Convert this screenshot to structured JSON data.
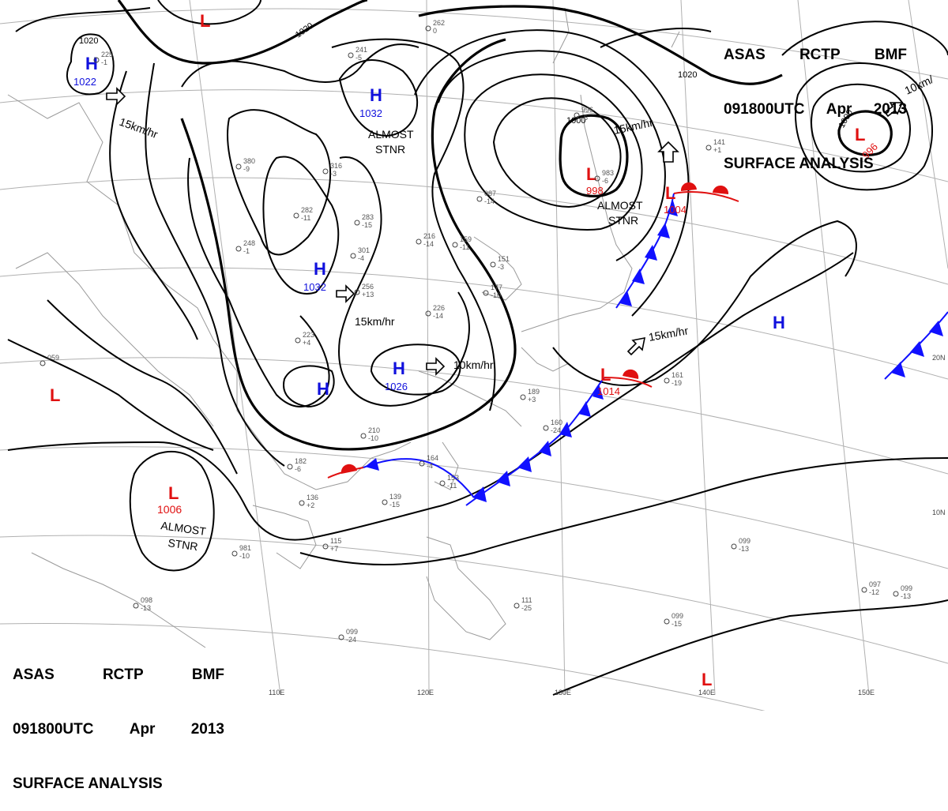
{
  "header": {
    "line1": [
      "ASAS",
      "RCTP",
      "BMF"
    ],
    "line2": [
      "091800UTC",
      "Apr",
      "2013"
    ],
    "line3": "SURFACE ANALYSIS"
  },
  "colors": {
    "high": "#1010dd",
    "low": "#e01010",
    "cold_front": "#1010ff",
    "warm_front": "#e01010"
  },
  "isobar_labels": [
    "1020",
    "1020",
    "1020",
    "1000",
    "1000"
  ],
  "centers": [
    {
      "type": "H",
      "value": "1022"
    },
    {
      "type": "H",
      "value": "1032"
    },
    {
      "type": "H",
      "value": "1032"
    },
    {
      "type": "H",
      "value": "1026"
    },
    {
      "type": "H",
      "value": ""
    },
    {
      "type": "H",
      "value": ""
    },
    {
      "type": "L",
      "value": "998"
    },
    {
      "type": "L",
      "value": "1004"
    },
    {
      "type": "L",
      "value": "996"
    },
    {
      "type": "L",
      "value": "1014"
    },
    {
      "type": "L",
      "value": "1006"
    },
    {
      "type": "L",
      "value": ""
    },
    {
      "type": "L",
      "value": ""
    },
    {
      "type": "L",
      "value": ""
    }
  ],
  "motion_labels": [
    "15km/hr",
    "15km/hr",
    "15km/hr",
    "15km/hr",
    "10km/hr",
    "10km/"
  ],
  "status_labels": [
    "ALMOST",
    "STNR",
    "ALMOST",
    "STNR",
    "ALMOST",
    "STNR"
  ],
  "longitude_labels": [
    "110E",
    "120E",
    "130E",
    "140E",
    "150E"
  ],
  "latitude_labels": [
    "20N",
    "10N"
  ],
  "station_samples": [
    {
      "line1": "225",
      "line2": "-1"
    },
    {
      "line1": "241",
      "line2": "-5"
    },
    {
      "line1": "262",
      "line2": "0"
    },
    {
      "line1": "223",
      "line2": "+4"
    },
    {
      "line1": "256",
      "line2": "+13"
    },
    {
      "line1": "159",
      "line2": "-11"
    },
    {
      "line1": "087",
      "line2": "-14"
    },
    {
      "line1": "189",
      "line2": "+3"
    },
    {
      "line1": "160",
      "line2": "-24"
    },
    {
      "line1": "139",
      "line2": "-15"
    },
    {
      "line1": "115",
      "line2": "+7"
    },
    {
      "line1": "099",
      "line2": "-13"
    },
    {
      "line1": "111",
      "line2": "-25"
    },
    {
      "line1": "099",
      "line2": "-24"
    },
    {
      "line1": "099",
      "line2": "-15"
    },
    {
      "line1": "097",
      "line2": "-12"
    },
    {
      "line1": "099",
      "line2": "-13"
    },
    {
      "line1": "161",
      "line2": "-19"
    },
    {
      "line1": "141",
      "line2": "+1"
    },
    {
      "line1": "098",
      "line2": "-13"
    },
    {
      "line1": "981",
      "line2": "-10"
    },
    {
      "line1": "136",
      "line2": "+2"
    },
    {
      "line1": "182",
      "line2": "-6"
    },
    {
      "line1": "210",
      "line2": "-10"
    },
    {
      "line1": "164",
      "line2": "-4"
    },
    {
      "line1": "153",
      "line2": "-11"
    },
    {
      "line1": "283",
      "line2": "-15"
    },
    {
      "line1": "301",
      "line2": "-4"
    },
    {
      "line1": "316",
      "line2": "-3"
    },
    {
      "line1": "380",
      "line2": "-9"
    },
    {
      "line1": "282",
      "line2": "-11"
    },
    {
      "line1": "248",
      "line2": "-1"
    },
    {
      "line1": "177",
      "line2": "-10"
    },
    {
      "line1": "226",
      "line2": "-14"
    },
    {
      "line1": "216",
      "line2": "-14"
    },
    {
      "line1": "151",
      "line2": "-3"
    },
    {
      "line1": "983",
      "line2": "-6"
    },
    {
      "line1": "996",
      "line2": "-6"
    },
    {
      "line1": "059",
      "line2": ""
    }
  ]
}
